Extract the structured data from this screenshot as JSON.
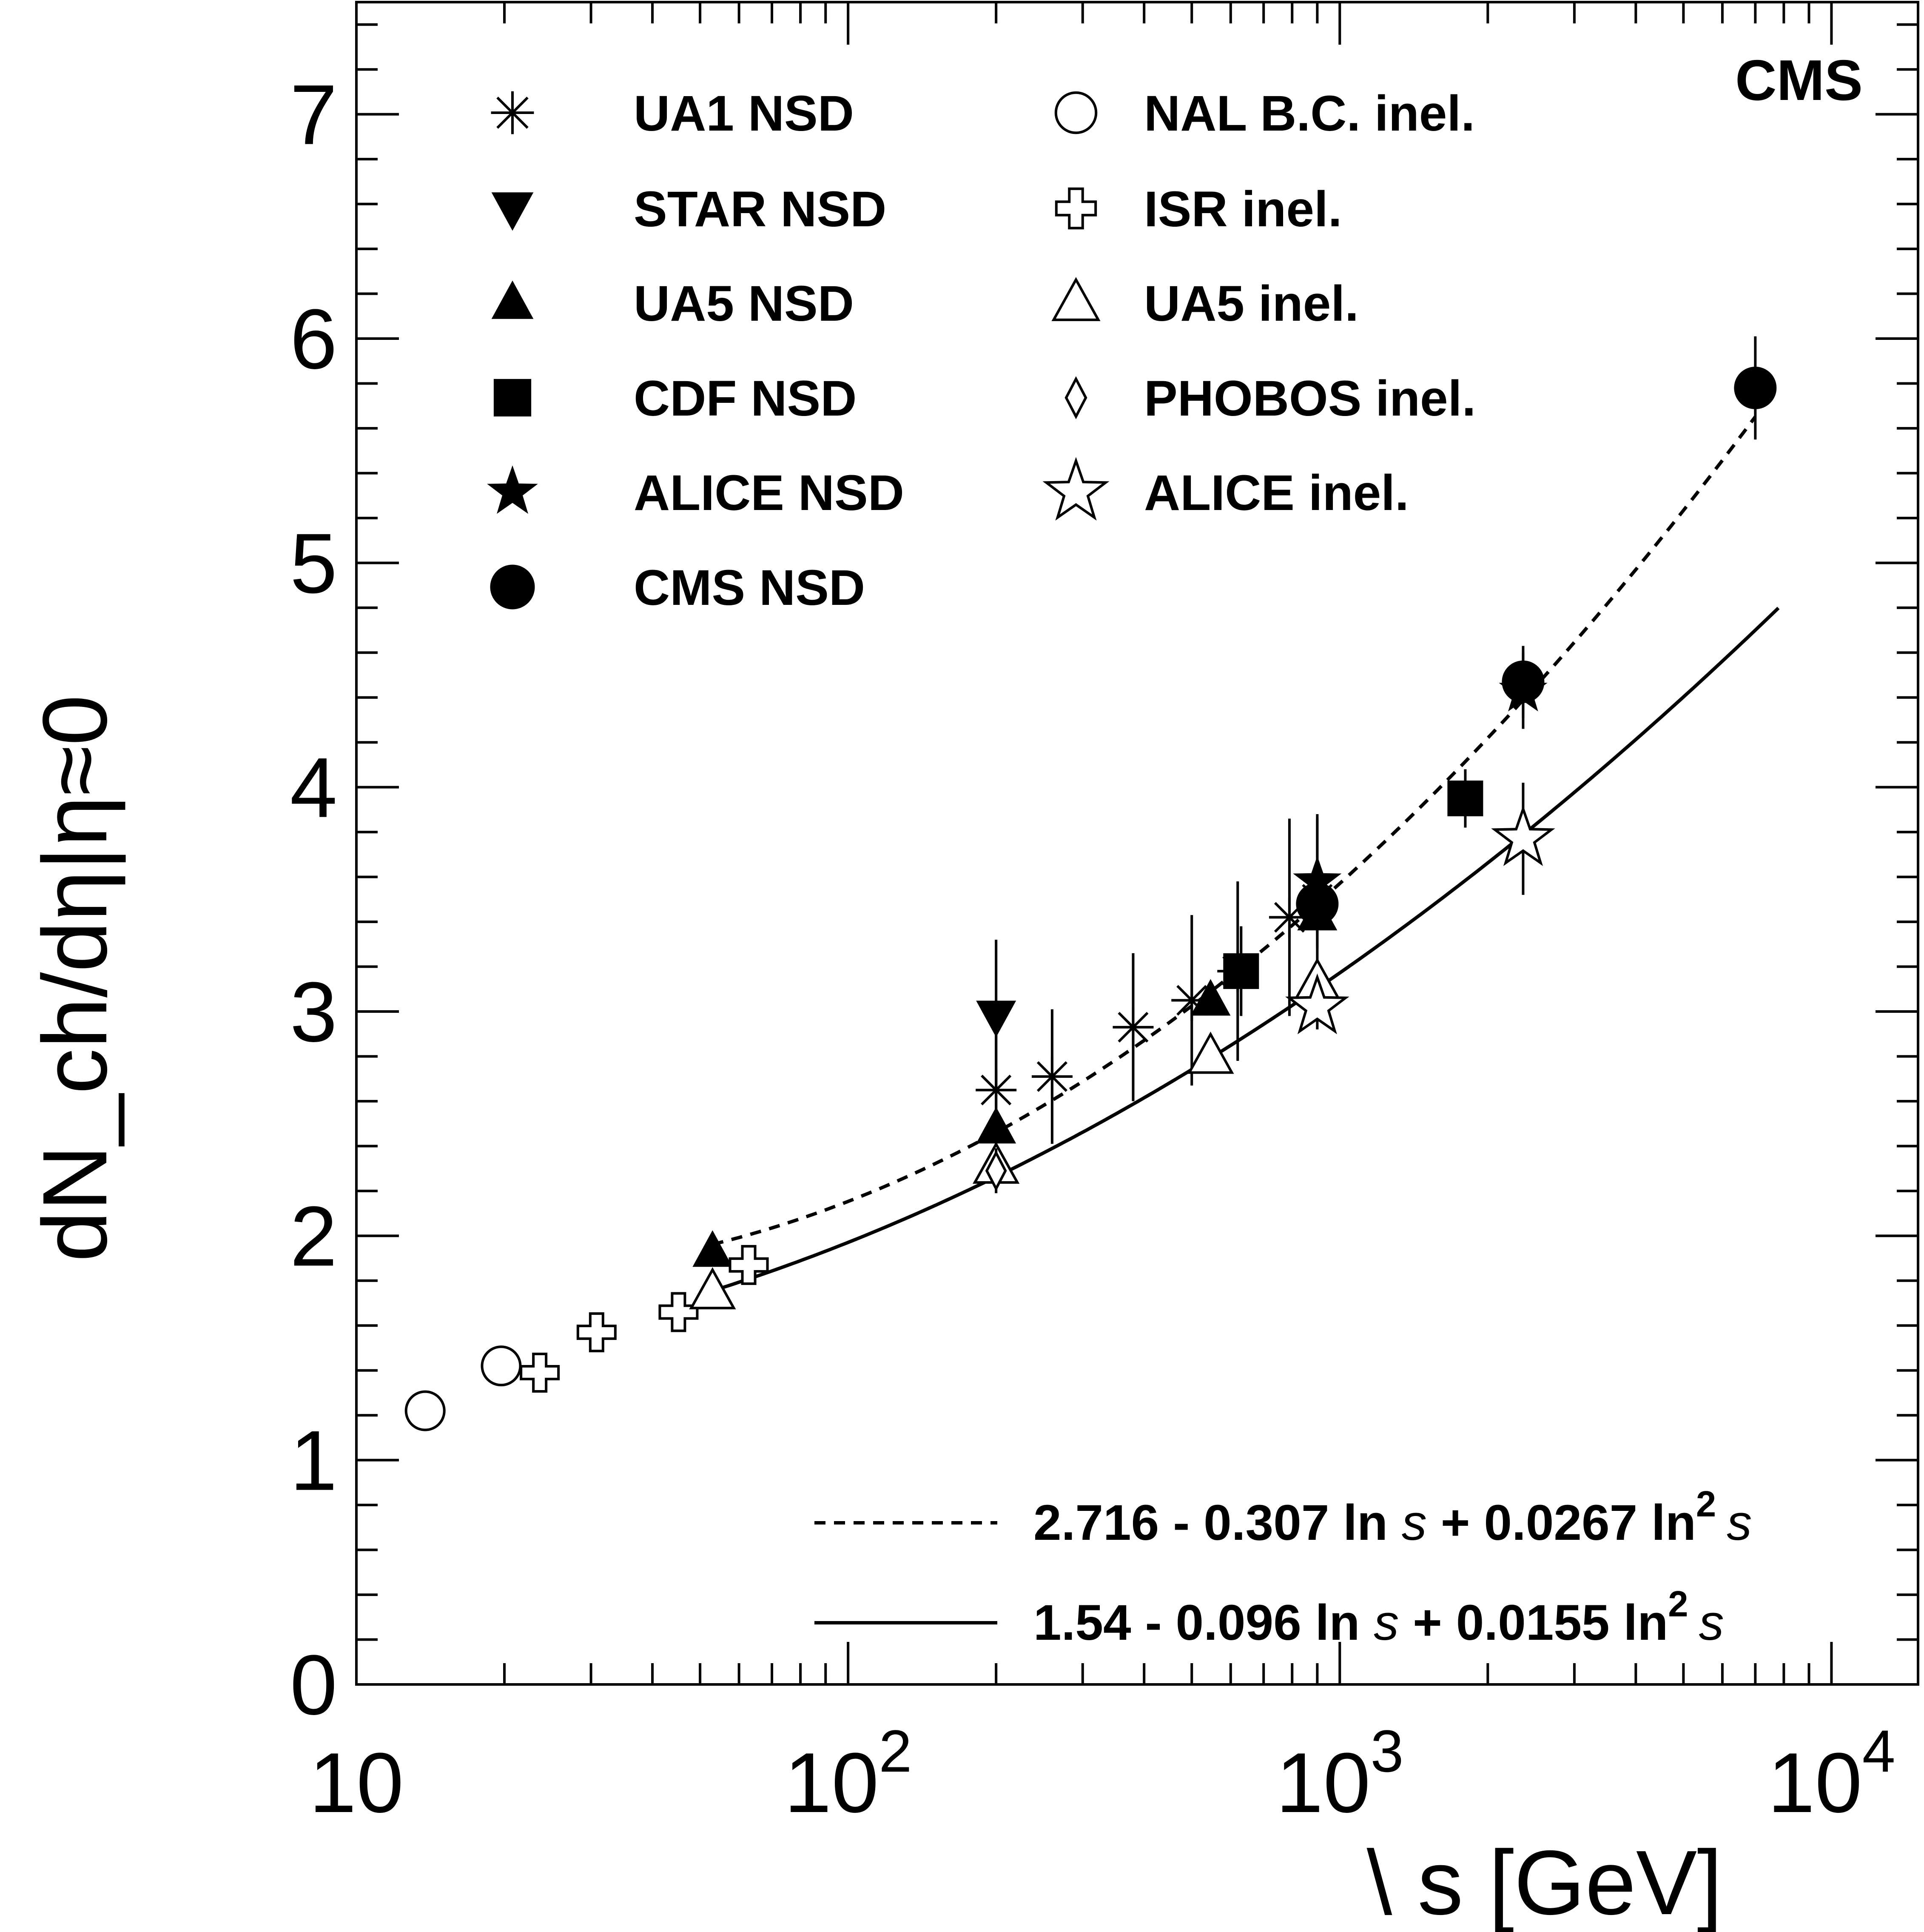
{
  "chart_data": {
    "type": "scatter",
    "x_scale": "log",
    "xlim": [
      10,
      15000
    ],
    "ylim": [
      0,
      7.5
    ],
    "xlabel": "\\ s [GeV]",
    "ylabel": "dN_ch/dη|η≈0",
    "experiment_label": "CMS",
    "x_ticks": [
      {
        "value": 10,
        "base": "10",
        "exp": ""
      },
      {
        "value": 100,
        "base": "10",
        "exp": "2"
      },
      {
        "value": 1000,
        "base": "10",
        "exp": "3"
      },
      {
        "value": 10000,
        "base": "10",
        "exp": "4"
      }
    ],
    "y_ticks": [
      0,
      1,
      2,
      3,
      4,
      5,
      6,
      7
    ],
    "y_tick_labels": [
      "0",
      "1",
      "2",
      "3",
      "4",
      "5",
      "6",
      "7"
    ],
    "series": [
      {
        "name": "UA1 NSD",
        "marker": "asterisk",
        "points": [
          {
            "x": 200,
            "y": 2.65,
            "err": 0.35
          },
          {
            "x": 260,
            "y": 2.71,
            "err": 0.3
          },
          {
            "x": 380,
            "y": 2.93,
            "err": 0.33
          },
          {
            "x": 500,
            "y": 3.05,
            "err": 0.38
          },
          {
            "x": 620,
            "y": 3.18,
            "err": 0.4
          },
          {
            "x": 790,
            "y": 3.42,
            "err": 0.44
          },
          {
            "x": 900,
            "y": 3.5,
            "err": 0.36
          }
        ]
      },
      {
        "name": "STAR NSD",
        "marker": "triangle-down-filled",
        "points": [
          {
            "x": 200,
            "y": 2.98,
            "err": 0.34
          }
        ]
      },
      {
        "name": "UA5 NSD",
        "marker": "triangle-up-filled",
        "points": [
          {
            "x": 53,
            "y": 1.93,
            "err": 0.0
          },
          {
            "x": 200,
            "y": 2.48,
            "err": 0.0
          },
          {
            "x": 546,
            "y": 3.05,
            "err": 0.0
          },
          {
            "x": 900,
            "y": 3.43,
            "err": 0.0
          }
        ]
      },
      {
        "name": "CDF NSD",
        "marker": "square-filled",
        "points": [
          {
            "x": 630,
            "y": 3.18,
            "err": 0.2
          },
          {
            "x": 1800,
            "y": 3.95,
            "err": 0.13
          }
        ]
      },
      {
        "name": "ALICE NSD",
        "marker": "star-filled",
        "points": [
          {
            "x": 900,
            "y": 3.58,
            "err": 0.3
          },
          {
            "x": 2360,
            "y": 4.43,
            "err": 0.17
          }
        ]
      },
      {
        "name": "CMS NSD",
        "marker": "circle-filled",
        "points": [
          {
            "x": 900,
            "y": 3.48,
            "err": 0.13
          },
          {
            "x": 2360,
            "y": 4.47,
            "err": 0.16
          },
          {
            "x": 7000,
            "y": 5.78,
            "err": 0.23
          }
        ]
      },
      {
        "name": "NAL B.C. inel.",
        "marker": "circle-open",
        "points": [
          {
            "x": 13.8,
            "y": 1.22,
            "err": 0.0
          },
          {
            "x": 19.7,
            "y": 1.42,
            "err": 0.0
          }
        ]
      },
      {
        "name": "ISR inel.",
        "marker": "cross-open",
        "points": [
          {
            "x": 23.6,
            "y": 1.39,
            "err": 0.0
          },
          {
            "x": 30.8,
            "y": 1.57,
            "err": 0.0
          },
          {
            "x": 45.2,
            "y": 1.66,
            "err": 0.0
          },
          {
            "x": 62.8,
            "y": 1.87,
            "err": 0.0
          }
        ]
      },
      {
        "name": "UA5 inel.",
        "marker": "triangle-up-open",
        "points": [
          {
            "x": 53,
            "y": 1.75,
            "err": 0.0
          },
          {
            "x": 200,
            "y": 2.31,
            "err": 0.0
          },
          {
            "x": 546,
            "y": 2.8,
            "err": 0.0
          },
          {
            "x": 900,
            "y": 3.13,
            "err": 0.0
          }
        ]
      },
      {
        "name": "PHOBOS inel.",
        "marker": "diamond-open",
        "points": [
          {
            "x": 200,
            "y": 2.29,
            "err": 0.1
          }
        ]
      },
      {
        "name": "ALICE inel.",
        "marker": "star-open",
        "points": [
          {
            "x": 900,
            "y": 3.02,
            "err": 0.1
          },
          {
            "x": 2360,
            "y": 3.77,
            "err": 0.25
          }
        ]
      }
    ],
    "fits": [
      {
        "label_pre": "2.716 - 0.307 ln ",
        "label_mid": " + 0.0267 ln",
        "label_sup": "2",
        "label_var": "s",
        "a": 2.716,
        "b": -0.307,
        "c": 0.0267,
        "x_range": [
          53,
          7000
        ],
        "style": "dashed"
      },
      {
        "label_pre": "1.54 - 0.096 ln ",
        "label_mid": " + 0.0155 ln",
        "label_sup": "2",
        "label_var": "s",
        "a": 1.54,
        "b": -0.096,
        "c": 0.0155,
        "x_range": [
          53,
          7800
        ],
        "style": "solid"
      }
    ]
  }
}
